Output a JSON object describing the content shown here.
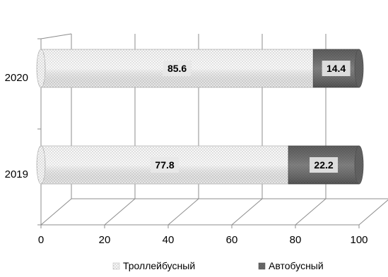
{
  "chart_data": {
    "type": "bar",
    "orientation": "horizontal",
    "stacked": true,
    "style": "3d-cylinder",
    "categories": [
      "2019",
      "2020"
    ],
    "series": [
      {
        "name": "Троллейбусный",
        "values": [
          77.8,
          85.6
        ],
        "color": "#f4f4f4",
        "pattern": "dotted"
      },
      {
        "name": "Автобусный",
        "values": [
          22.2,
          14.4
        ],
        "color": "#6e6e6e",
        "pattern": "dotted"
      }
    ],
    "data_labels": {
      "Троллейбусный": [
        "77.8",
        "85.6"
      ],
      "Автобусный": [
        "22.2",
        "14.4"
      ]
    },
    "xlim": [
      0,
      100
    ],
    "x_ticks": [
      "0",
      "20",
      "40",
      "60",
      "80",
      "100"
    ],
    "title": "",
    "xlabel": "",
    "ylabel": "",
    "legend_position": "bottom",
    "grid": true
  }
}
